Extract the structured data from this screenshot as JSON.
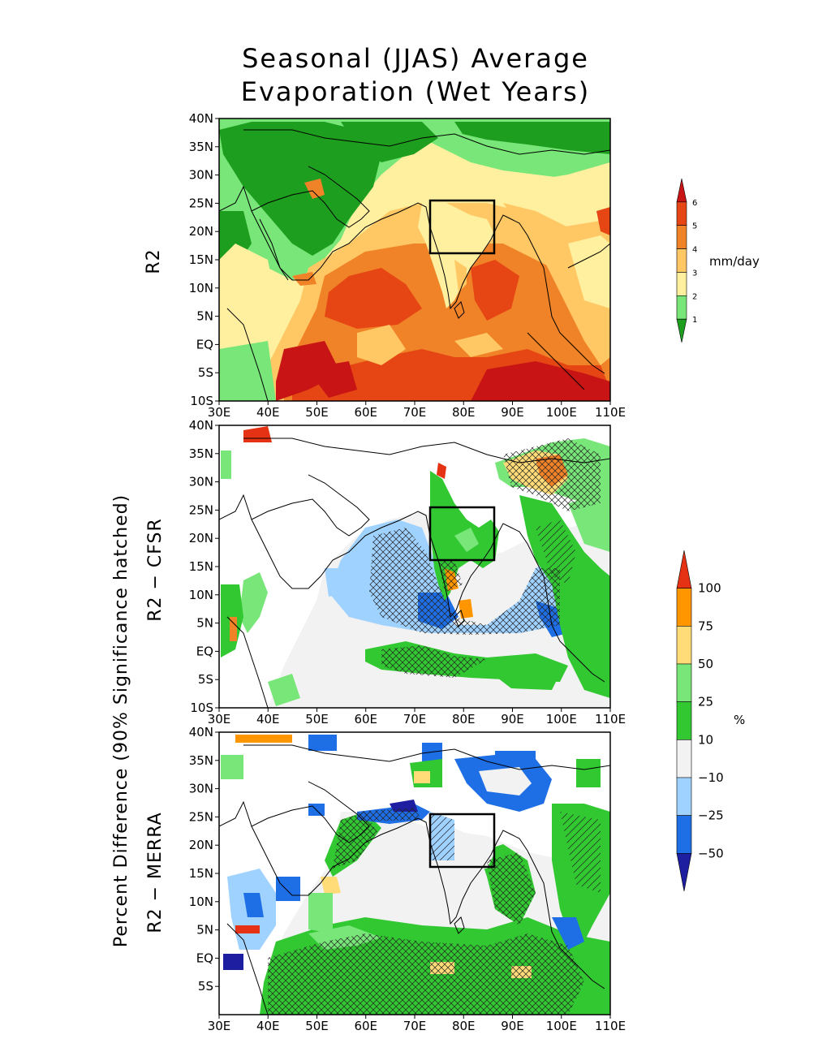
{
  "figure": {
    "title_line1": "Seasonal (JJAS) Average",
    "title_line2": "Evaporation (Wet Years)",
    "row_label_r2": "R2",
    "row_label_cfsr": "R2 − CFSR",
    "row_label_merra": "R2 − MERRA",
    "side_label": "Percent Difference (90% Significance hatched)"
  },
  "panels": [
    {
      "id": "r2",
      "name": "R2",
      "lat_ticks": [
        "40N",
        "35N",
        "30N",
        "25N",
        "20N",
        "15N",
        "10N",
        "5N",
        "EQ",
        "5S",
        "10S"
      ],
      "lon_ticks": [
        "30E",
        "40E",
        "50E",
        "60E",
        "70E",
        "80E",
        "90E",
        "100E",
        "110E"
      ]
    },
    {
      "id": "cfsr",
      "name": "R2 - CFSR",
      "lat_ticks": [
        "40N",
        "35N",
        "30N",
        "25N",
        "20N",
        "15N",
        "10N",
        "5N",
        "EQ",
        "5S",
        "10S"
      ],
      "lon_ticks": [
        "30E",
        "40E",
        "50E",
        "60E",
        "70E",
        "80E",
        "90E",
        "100E",
        "110E"
      ]
    },
    {
      "id": "merra",
      "name": "R2 - MERRA",
      "lat_ticks": [
        "40N",
        "35N",
        "30N",
        "25N",
        "20N",
        "15N",
        "10N",
        "5N",
        "EQ",
        "5S"
      ],
      "lon_ticks": [
        "30E",
        "40E",
        "50E",
        "60E",
        "70E",
        "80E",
        "90E",
        "100E",
        "110E"
      ]
    }
  ],
  "map_extent": {
    "lon": [
      30,
      110
    ],
    "lat": [
      -10,
      40
    ]
  },
  "region_box": {
    "lon": [
      73,
      86
    ],
    "lat": [
      16.5,
      26
    ]
  },
  "colorbar_evap": {
    "unit": "mm/day",
    "labels": [
      "1",
      "2",
      "3",
      "4",
      "5",
      "6"
    ],
    "colors": [
      "#1e9e1e",
      "#78e678",
      "#fff0a0",
      "#ffc864",
      "#f08228",
      "#e64614",
      "#c81414"
    ]
  },
  "colorbar_pct": {
    "unit": "%",
    "labels": [
      "100",
      "75",
      "50",
      "25",
      "10",
      "−10",
      "−25",
      "−50"
    ],
    "colors": [
      "#e63214",
      "#ff9600",
      "#ffdc78",
      "#78e678",
      "#32c832",
      "#f2f2f2",
      "#a0d2ff",
      "#1e6ee6",
      "#1e1ea0"
    ]
  }
}
